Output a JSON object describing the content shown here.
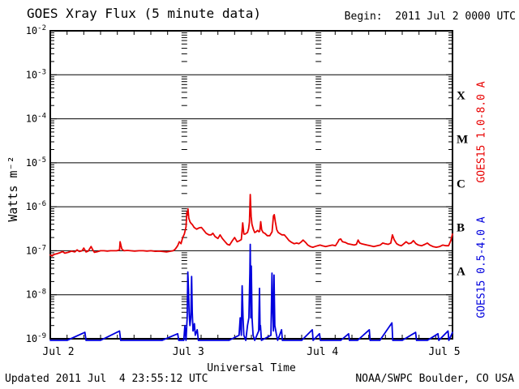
{
  "header": {
    "begin": "Begin:  2011 Jul 2 0000 UTC"
  },
  "footer": {
    "updated": "Updated 2011 Jul  4 23:55:12 UTC",
    "source": "NOAA/SWPC Boulder, CO USA"
  },
  "chart_data": {
    "type": "line",
    "title": "GOES Xray Flux (5 minute data)",
    "xlabel": "Universal Time",
    "ylabel": "Watts m⁻²",
    "x_unit_hours_since": "2011 Jul 2 0000 UTC",
    "xlim_hours": [
      0,
      72
    ],
    "ylog_exponent_range": [
      -2,
      -9
    ],
    "grid": {
      "horizontal_decade_lines": true,
      "vertical_dotted_day_lines_hours": [
        24,
        48
      ],
      "minor_xtick_step_hours": 3
    },
    "xticks": [
      {
        "hour": 0,
        "label": "Jul 2"
      },
      {
        "hour": 24,
        "label": "Jul 3"
      },
      {
        "hour": 48,
        "label": "Jul 4"
      },
      {
        "hour": 72,
        "label": "Jul 5"
      }
    ],
    "ytick_exponents": [
      -2,
      -3,
      -4,
      -5,
      -6,
      -7,
      -8,
      -9
    ],
    "flare_classes": [
      {
        "label": "X",
        "decade_mid_log10": -3.5
      },
      {
        "label": "M",
        "decade_mid_log10": -4.5
      },
      {
        "label": "C",
        "decade_mid_log10": -5.5
      },
      {
        "label": "B",
        "decade_mid_log10": -6.5
      },
      {
        "label": "A",
        "decade_mid_log10": -7.5
      }
    ],
    "colors": {
      "long_channel": "#e80000",
      "short_channel": "#0000dd",
      "axis": "#000000",
      "background": "#ffffff"
    },
    "series": [
      {
        "name": "GOES15 1.0-8.0 A",
        "color": "#e80000",
        "points": [
          [
            0,
            8e-08
          ],
          [
            0.3,
            7.6e-08
          ],
          [
            0.6,
            8.2e-08
          ],
          [
            1.2,
            8.6e-08
          ],
          [
            1.7,
            9e-08
          ],
          [
            2.2,
            9.6e-08
          ],
          [
            2.6,
            8.8e-08
          ],
          [
            3.2,
            9.2e-08
          ],
          [
            3.8,
            9.8e-08
          ],
          [
            4.4,
            9.4e-08
          ],
          [
            4.8,
            1.05e-07
          ],
          [
            5.2,
            9.6e-08
          ],
          [
            5.7,
            1e-07
          ],
          [
            6.0,
            1.15e-07
          ],
          [
            6.4,
            9.4e-08
          ],
          [
            6.8,
            9.8e-08
          ],
          [
            7.3,
            1.25e-07
          ],
          [
            7.6,
            1.05e-07
          ],
          [
            7.9,
            9.2e-08
          ],
          [
            8.4,
            9.5e-08
          ],
          [
            9.0,
            1e-07
          ],
          [
            9.6,
            1e-07
          ],
          [
            10.2,
            9.8e-08
          ],
          [
            10.8,
            1e-07
          ],
          [
            11.3,
            1e-07
          ],
          [
            11.9,
            1e-07
          ],
          [
            12.4,
            1.05e-07
          ],
          [
            12.5,
            1.6e-07
          ],
          [
            12.8,
            1.1e-07
          ],
          [
            13.2,
            1e-07
          ],
          [
            13.8,
            1.02e-07
          ],
          [
            14.4,
            1e-07
          ],
          [
            15.1,
            9.8e-08
          ],
          [
            15.9,
            1e-07
          ],
          [
            16.6,
            1e-07
          ],
          [
            17.3,
            9.8e-08
          ],
          [
            18.0,
            1e-07
          ],
          [
            18.8,
            9.7e-08
          ],
          [
            19.5,
            9.8e-08
          ],
          [
            20.2,
            9.6e-08
          ],
          [
            20.8,
            9.4e-08
          ],
          [
            21.4,
            9.7e-08
          ],
          [
            22.0,
            1e-07
          ],
          [
            22.4,
            1.1e-07
          ],
          [
            22.8,
            1.3e-07
          ],
          [
            23.1,
            1.6e-07
          ],
          [
            23.4,
            1.45e-07
          ],
          [
            23.7,
            2e-07
          ],
          [
            24.0,
            2.4e-07
          ],
          [
            24.3,
            3.5e-07
          ],
          [
            24.45,
            7.5e-07
          ],
          [
            24.55,
            6.5e-07
          ],
          [
            24.65,
            9e-07
          ],
          [
            24.8,
            5.5e-07
          ],
          [
            25.0,
            4.6e-07
          ],
          [
            25.2,
            4.2e-07
          ],
          [
            25.45,
            3.9e-07
          ],
          [
            25.75,
            3.4e-07
          ],
          [
            26.2,
            3.1e-07
          ],
          [
            26.6,
            3.3e-07
          ],
          [
            27.05,
            3.4e-07
          ],
          [
            27.5,
            2.9e-07
          ],
          [
            27.9,
            2.5e-07
          ],
          [
            28.4,
            2.3e-07
          ],
          [
            28.8,
            2.3e-07
          ],
          [
            29.1,
            2.5e-07
          ],
          [
            29.5,
            2.1e-07
          ],
          [
            30.0,
            1.9e-07
          ],
          [
            30.4,
            2.3e-07
          ],
          [
            30.8,
            1.9e-07
          ],
          [
            31.3,
            1.6e-07
          ],
          [
            31.7,
            1.4e-07
          ],
          [
            32.1,
            1.35e-07
          ],
          [
            32.6,
            1.7e-07
          ],
          [
            33.0,
            2e-07
          ],
          [
            33.45,
            1.6e-07
          ],
          [
            33.9,
            1.7e-07
          ],
          [
            34.2,
            1.8e-07
          ],
          [
            34.45,
            4.3e-07
          ],
          [
            34.65,
            2.4e-07
          ],
          [
            34.9,
            2.4e-07
          ],
          [
            35.1,
            2.5e-07
          ],
          [
            35.3,
            2.6e-07
          ],
          [
            35.5,
            3.2e-07
          ],
          [
            35.65,
            4.5e-07
          ],
          [
            35.8,
            1.9e-06
          ],
          [
            35.95,
            6e-07
          ],
          [
            36.1,
            4e-07
          ],
          [
            36.35,
            3.1e-07
          ],
          [
            36.6,
            2.6e-07
          ],
          [
            36.85,
            2.7e-07
          ],
          [
            37.1,
            2.9e-07
          ],
          [
            37.35,
            2.7e-07
          ],
          [
            37.5,
            2.8e-07
          ],
          [
            37.67,
            4.6e-07
          ],
          [
            37.85,
            3e-07
          ],
          [
            38.1,
            2.6e-07
          ],
          [
            38.4,
            2.5e-07
          ],
          [
            38.85,
            2.2e-07
          ],
          [
            39.3,
            2.2e-07
          ],
          [
            39.7,
            2.7e-07
          ],
          [
            39.95,
            6.2e-07
          ],
          [
            40.1,
            6.6e-07
          ],
          [
            40.3,
            4.5e-07
          ],
          [
            40.55,
            3e-07
          ],
          [
            40.8,
            2.6e-07
          ],
          [
            41.0,
            2.5e-07
          ],
          [
            41.45,
            2.3e-07
          ],
          [
            41.9,
            2.3e-07
          ],
          [
            42.3,
            2e-07
          ],
          [
            42.75,
            1.7e-07
          ],
          [
            43.2,
            1.55e-07
          ],
          [
            43.65,
            1.45e-07
          ],
          [
            44.1,
            1.5e-07
          ],
          [
            44.5,
            1.45e-07
          ],
          [
            44.95,
            1.6e-07
          ],
          [
            45.25,
            1.75e-07
          ],
          [
            45.7,
            1.55e-07
          ],
          [
            46.1,
            1.35e-07
          ],
          [
            46.55,
            1.25e-07
          ],
          [
            47.0,
            1.2e-07
          ],
          [
            47.4,
            1.25e-07
          ],
          [
            47.85,
            1.3e-07
          ],
          [
            48.3,
            1.35e-07
          ],
          [
            48.7,
            1.3e-07
          ],
          [
            49.3,
            1.25e-07
          ],
          [
            49.9,
            1.3e-07
          ],
          [
            50.5,
            1.35e-07
          ],
          [
            51.05,
            1.3e-07
          ],
          [
            51.5,
            1.6e-07
          ],
          [
            51.7,
            1.8e-07
          ],
          [
            52.0,
            1.85e-07
          ],
          [
            52.3,
            1.6e-07
          ],
          [
            52.8,
            1.55e-07
          ],
          [
            53.25,
            1.45e-07
          ],
          [
            53.8,
            1.4e-07
          ],
          [
            54.4,
            1.35e-07
          ],
          [
            54.8,
            1.4e-07
          ],
          [
            55.1,
            1.75e-07
          ],
          [
            55.4,
            1.5e-07
          ],
          [
            55.7,
            1.45e-07
          ],
          [
            56.15,
            1.4e-07
          ],
          [
            56.7,
            1.35e-07
          ],
          [
            57.3,
            1.3e-07
          ],
          [
            57.9,
            1.25e-07
          ],
          [
            58.5,
            1.3e-07
          ],
          [
            59.05,
            1.35e-07
          ],
          [
            59.5,
            1.5e-07
          ],
          [
            59.95,
            1.45e-07
          ],
          [
            60.5,
            1.4e-07
          ],
          [
            60.95,
            1.5e-07
          ],
          [
            61.25,
            2.3e-07
          ],
          [
            61.55,
            1.8e-07
          ],
          [
            62.0,
            1.45e-07
          ],
          [
            62.4,
            1.35e-07
          ],
          [
            62.85,
            1.3e-07
          ],
          [
            63.3,
            1.45e-07
          ],
          [
            63.7,
            1.6e-07
          ],
          [
            64.15,
            1.45e-07
          ],
          [
            64.6,
            1.5e-07
          ],
          [
            65.0,
            1.7e-07
          ],
          [
            65.45,
            1.45e-07
          ],
          [
            65.9,
            1.35e-07
          ],
          [
            66.5,
            1.3e-07
          ],
          [
            67.05,
            1.4e-07
          ],
          [
            67.5,
            1.5e-07
          ],
          [
            67.95,
            1.35e-07
          ],
          [
            68.5,
            1.25e-07
          ],
          [
            69.1,
            1.2e-07
          ],
          [
            69.7,
            1.25e-07
          ],
          [
            70.25,
            1.35e-07
          ],
          [
            70.85,
            1.3e-07
          ],
          [
            71.3,
            1.3e-07
          ],
          [
            71.7,
            1.7e-07
          ],
          [
            72,
            2.4e-07
          ]
        ]
      },
      {
        "name": "GOES15 0.5-4.0 A",
        "color": "#0000dd",
        "points": [
          [
            0,
            1e-09
          ],
          [
            3,
            1e-09
          ],
          [
            6.2,
            1.4e-09
          ],
          [
            6.4,
            1e-09
          ],
          [
            9,
            1e-09
          ],
          [
            12.4,
            1.5e-09
          ],
          [
            12.6,
            1e-09
          ],
          [
            16,
            1e-09
          ],
          [
            20,
            1e-09
          ],
          [
            22.8,
            1.3e-09
          ],
          [
            23.0,
            1e-09
          ],
          [
            23.9,
            1e-09
          ],
          [
            24.1,
            2e-09
          ],
          [
            24.3,
            1e-09
          ],
          [
            24.5,
            3e-09
          ],
          [
            24.62,
            3.3e-08
          ],
          [
            24.75,
            1.3e-08
          ],
          [
            24.85,
            4e-09
          ],
          [
            25.0,
            2e-09
          ],
          [
            25.15,
            3e-09
          ],
          [
            25.3,
            2.6e-08
          ],
          [
            25.42,
            4e-09
          ],
          [
            25.55,
            1.5e-09
          ],
          [
            25.8,
            2.2e-09
          ],
          [
            25.95,
            1.2e-09
          ],
          [
            26.3,
            1.6e-09
          ],
          [
            26.5,
            1e-09
          ],
          [
            28,
            1e-09
          ],
          [
            30,
            1e-09
          ],
          [
            32,
            1e-09
          ],
          [
            33.8,
            1.2e-09
          ],
          [
            34.0,
            3e-09
          ],
          [
            34.2,
            1.2e-09
          ],
          [
            34.35,
            1.6e-08
          ],
          [
            34.5,
            3e-09
          ],
          [
            34.65,
            1.2e-09
          ],
          [
            35.0,
            1e-09
          ],
          [
            35.3,
            2e-09
          ],
          [
            35.55,
            3e-09
          ],
          [
            35.72,
            3e-08
          ],
          [
            35.8,
            1.4e-07
          ],
          [
            35.9,
            3e-09
          ],
          [
            35.98,
            4.5e-08
          ],
          [
            36.12,
            3e-09
          ],
          [
            36.3,
            1.2e-09
          ],
          [
            36.6,
            1e-09
          ],
          [
            37.3,
            1.5e-09
          ],
          [
            37.45,
            1.4e-08
          ],
          [
            37.55,
            1.6e-09
          ],
          [
            37.62,
            2e-09
          ],
          [
            37.8,
            1e-09
          ],
          [
            39.5,
            1.2e-09
          ],
          [
            39.68,
            3.1e-08
          ],
          [
            39.8,
            5e-09
          ],
          [
            39.95,
            1.5e-09
          ],
          [
            40.05,
            2.8e-08
          ],
          [
            40.2,
            2e-09
          ],
          [
            40.45,
            1.3e-09
          ],
          [
            40.7,
            1e-09
          ],
          [
            41.4,
            1.6e-09
          ],
          [
            41.55,
            1e-09
          ],
          [
            43,
            1e-09
          ],
          [
            45,
            1e-09
          ],
          [
            46.9,
            1.6e-09
          ],
          [
            47.05,
            1e-09
          ],
          [
            48.2,
            1.3e-09
          ],
          [
            48.35,
            1e-09
          ],
          [
            50,
            1e-09
          ],
          [
            52,
            1e-09
          ],
          [
            53.4,
            1.3e-09
          ],
          [
            53.55,
            1e-09
          ],
          [
            55,
            1e-09
          ],
          [
            57.1,
            1.6e-09
          ],
          [
            57.25,
            1e-09
          ],
          [
            59,
            1e-09
          ],
          [
            61.15,
            2.3e-09
          ],
          [
            61.3,
            1e-09
          ],
          [
            63,
            1e-09
          ],
          [
            65.4,
            1.4e-09
          ],
          [
            65.55,
            1e-09
          ],
          [
            67.5,
            1e-09
          ],
          [
            69.4,
            1.3e-09
          ],
          [
            69.55,
            1e-09
          ],
          [
            71.2,
            1.5e-09
          ],
          [
            71.35,
            1e-09
          ],
          [
            72,
            1.4e-09
          ]
        ]
      }
    ]
  }
}
